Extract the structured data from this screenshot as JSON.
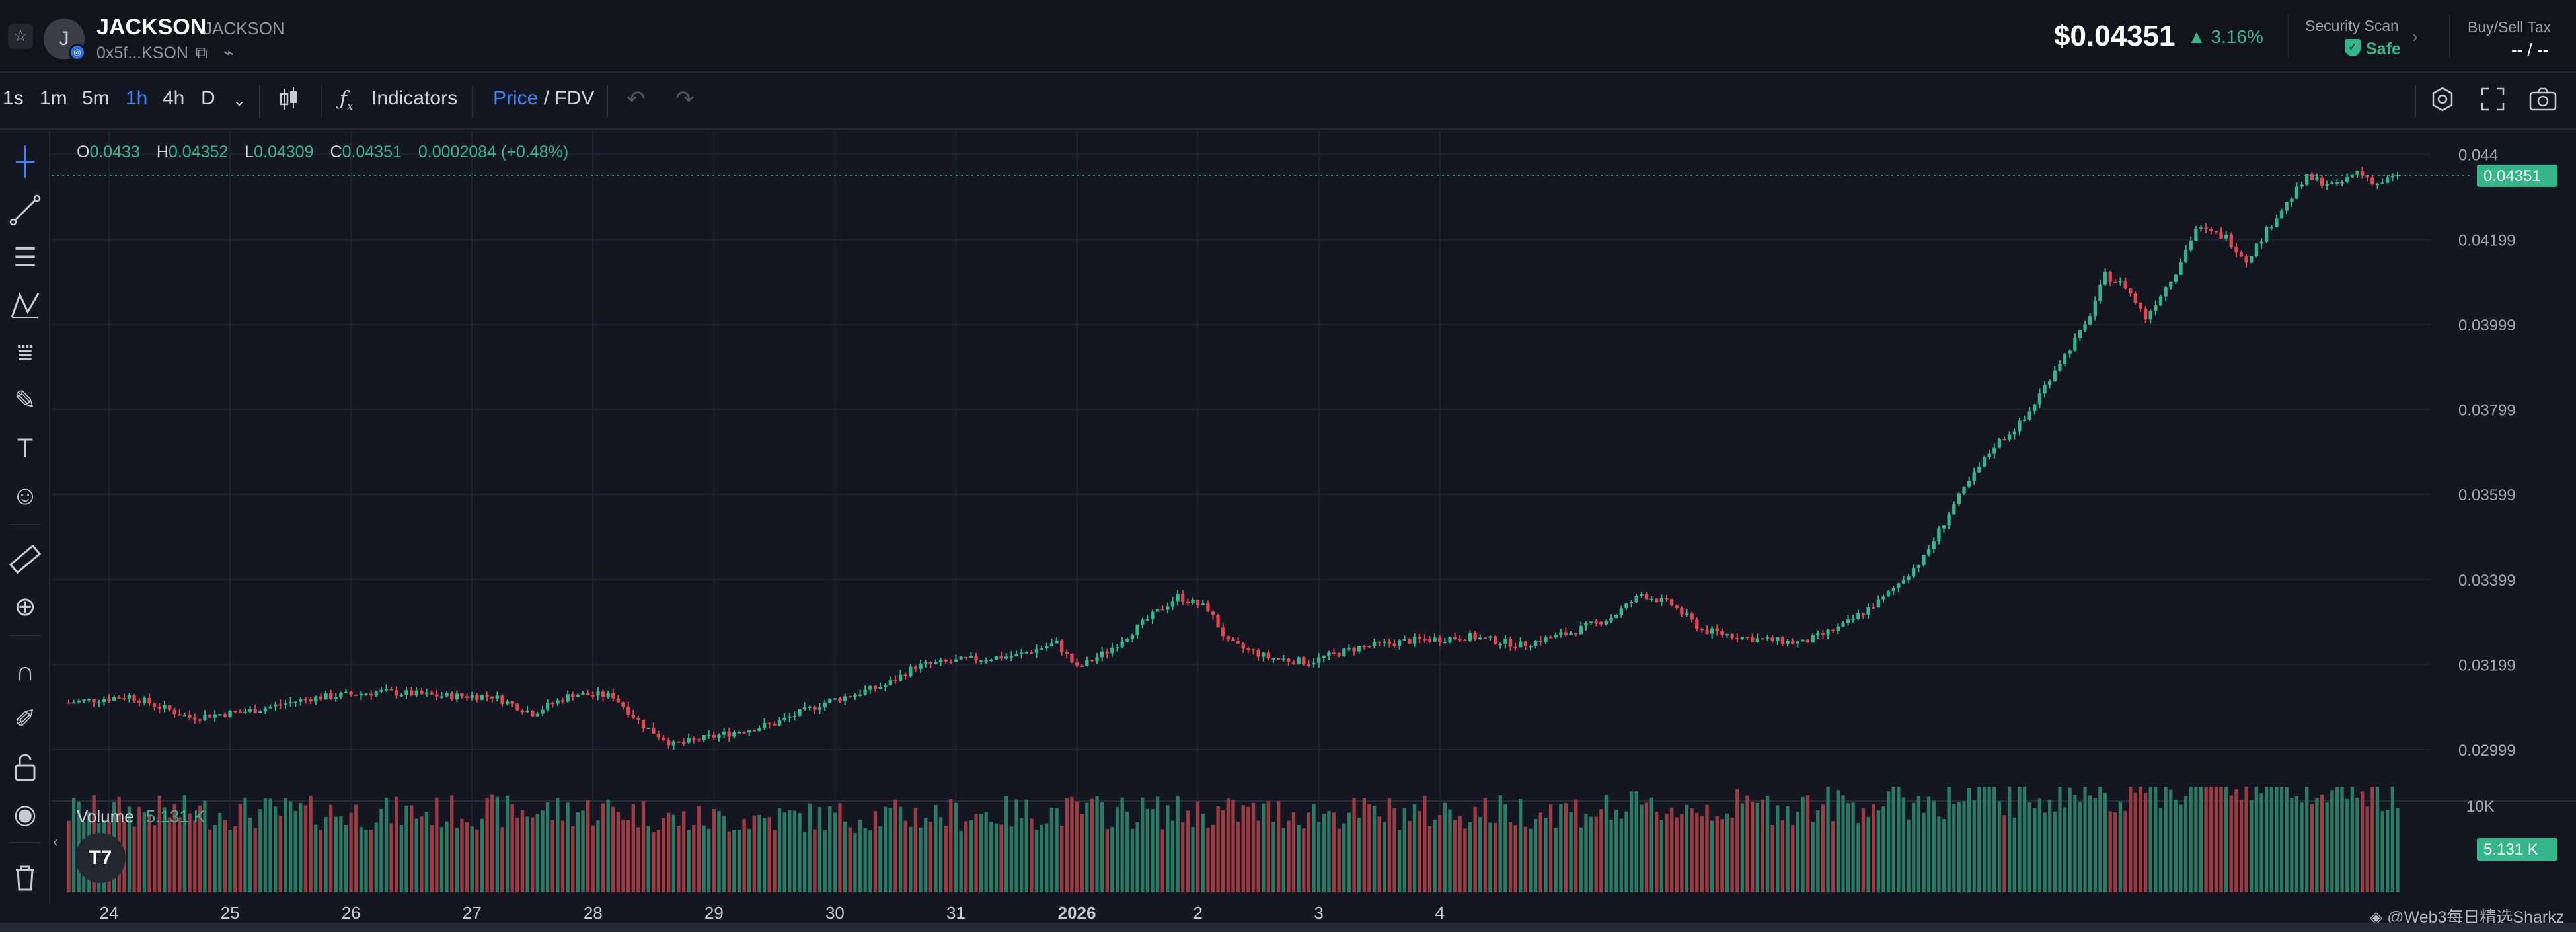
{
  "header": {
    "fav_icon": "star-icon",
    "avatar_letter": "J",
    "chain_badge": "◎",
    "token_name": "JACKSON",
    "token_symbol": "JACKSON",
    "token_address": "0x5f...KSON",
    "price": "$0.04351",
    "change": "▲ 3.16%",
    "security_label": "Security Scan",
    "security_value": "Safe",
    "tax_label": "Buy/Sell Tax",
    "tax_value": "-- / --"
  },
  "toolbar": {
    "intervals": [
      "1s",
      "1m",
      "5m",
      "1h",
      "4h",
      "D"
    ],
    "active_interval": "1h",
    "indicators_label": "Indicators",
    "price_label": "Price",
    "fdv_label": " / FDV"
  },
  "legend": {
    "o_label": "O",
    "o_value": "0.0433",
    "h_label": "H",
    "h_value": "0.04352",
    "l_label": "L",
    "l_value": "0.04309",
    "c_label": "C",
    "c_value": "0.04351",
    "change": "0.0002084 (+0.48%)",
    "volume_label": "Volume",
    "volume_value": "5.131 K"
  },
  "watermark": "◈ @Web3每日精选Sharkz",
  "colors": {
    "up": "#35b58a",
    "down": "#e0474f",
    "accent": "#3f84f5"
  },
  "chart_data": {
    "type": "candlestick",
    "timeframe": "1h",
    "title": "JACKSON",
    "x_labels": [
      "24",
      "25",
      "26",
      "27",
      "28",
      "29",
      "30",
      "31",
      "2026",
      "2",
      "3",
      "4"
    ],
    "y_ticks": [
      0.02999,
      0.03199,
      0.03399,
      0.03599,
      0.03799,
      0.03999,
      0.04199,
      0.044
    ],
    "y_tick_labels": [
      "0.02999",
      "0.03199",
      "0.03399",
      "0.03599",
      "0.03799",
      "0.03999",
      "0.04199",
      "0.044"
    ],
    "ylim": [
      0.0289,
      0.04455
    ],
    "last_price": 0.04351,
    "last_price_label": "0.04351",
    "volume_axis_max_label": "10K",
    "volume_last_label": "5.131 K",
    "volume_max": 10000,
    "grid": true,
    "close_anchors": [
      [
        0,
        0.0311
      ],
      [
        12,
        0.03125
      ],
      [
        24,
        0.03075
      ],
      [
        36,
        0.0309
      ],
      [
        48,
        0.0312
      ],
      [
        62,
        0.03135
      ],
      [
        74,
        0.03125
      ],
      [
        84,
        0.03125
      ],
      [
        92,
        0.03085
      ],
      [
        100,
        0.0313
      ],
      [
        108,
        0.03125
      ],
      [
        114,
        0.03055
      ],
      [
        120,
        0.0301
      ],
      [
        130,
        0.03035
      ],
      [
        140,
        0.0306
      ],
      [
        150,
        0.0311
      ],
      [
        162,
        0.0315
      ],
      [
        168,
        0.03195
      ],
      [
        178,
        0.0321
      ],
      [
        188,
        0.0322
      ],
      [
        196,
        0.0325
      ],
      [
        200,
        0.0319
      ],
      [
        206,
        0.0323
      ],
      [
        214,
        0.03305
      ],
      [
        220,
        0.0336
      ],
      [
        226,
        0.0333
      ],
      [
        230,
        0.0325
      ],
      [
        238,
        0.03215
      ],
      [
        246,
        0.03205
      ],
      [
        256,
        0.0324
      ],
      [
        266,
        0.03255
      ],
      [
        278,
        0.03265
      ],
      [
        288,
        0.03245
      ],
      [
        298,
        0.03275
      ],
      [
        306,
        0.0331
      ],
      [
        312,
        0.03365
      ],
      [
        318,
        0.0334
      ],
      [
        324,
        0.0328
      ],
      [
        334,
        0.0326
      ],
      [
        344,
        0.0325
      ],
      [
        352,
        0.0329
      ],
      [
        360,
        0.03355
      ],
      [
        368,
        0.0345
      ],
      [
        374,
        0.03575
      ],
      [
        382,
        0.03715
      ],
      [
        388,
        0.03775
      ],
      [
        394,
        0.03895
      ],
      [
        400,
        0.03995
      ],
      [
        404,
        0.04115
      ],
      [
        408,
        0.0409
      ],
      [
        412,
        0.04015
      ],
      [
        418,
        0.04125
      ],
      [
        422,
        0.04225
      ],
      [
        428,
        0.04205
      ],
      [
        432,
        0.0415
      ],
      [
        438,
        0.04255
      ],
      [
        444,
        0.04345
      ],
      [
        450,
        0.04325
      ],
      [
        454,
        0.0436
      ],
      [
        458,
        0.0433
      ],
      [
        462,
        0.04351
      ]
    ],
    "volume_anchors": [
      [
        0,
        4800
      ],
      [
        60,
        4700
      ],
      [
        110,
        4900
      ],
      [
        120,
        4300
      ],
      [
        200,
        4800
      ],
      [
        260,
        4700
      ],
      [
        300,
        4900
      ],
      [
        340,
        5100
      ],
      [
        380,
        5600
      ],
      [
        420,
        6300
      ],
      [
        450,
        6700
      ],
      [
        462,
        5131
      ]
    ]
  }
}
